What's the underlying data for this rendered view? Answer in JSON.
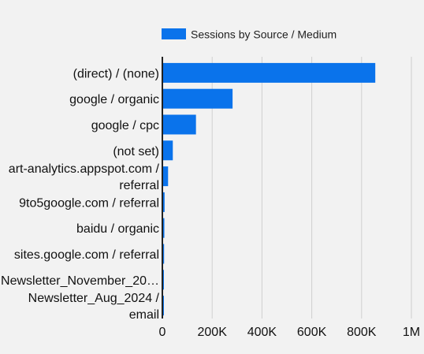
{
  "chart_data": {
    "type": "bar",
    "orientation": "horizontal",
    "title": "",
    "xlabel": "",
    "ylabel": "",
    "categories": [
      [
        "(direct) / (none)"
      ],
      [
        "google / organic"
      ],
      [
        "google / cpc"
      ],
      [
        "(not set)"
      ],
      [
        "art-analytics.appspot.com /",
        "referral"
      ],
      [
        "9to5google.com / referral"
      ],
      [
        "baidu / organic"
      ],
      [
        "sites.google.com / referral"
      ],
      [
        "Newsletter_November_20…"
      ],
      [
        "Newsletter_Aug_2024 /",
        "email"
      ]
    ],
    "series": [
      {
        "name": "Sessions by Source / Medium",
        "color": "#0a73eb",
        "values": [
          855000,
          282000,
          135000,
          42000,
          23000,
          9000,
          8000,
          7000,
          4000,
          3000
        ]
      }
    ],
    "xlim": [
      0,
      1000000
    ],
    "xticks": [
      0,
      200000,
      400000,
      600000,
      800000,
      1000000
    ],
    "xtick_labels": [
      "0",
      "200K",
      "400K",
      "600K",
      "800K",
      "1M"
    ],
    "grid": "vertical",
    "legend_position": "top"
  }
}
